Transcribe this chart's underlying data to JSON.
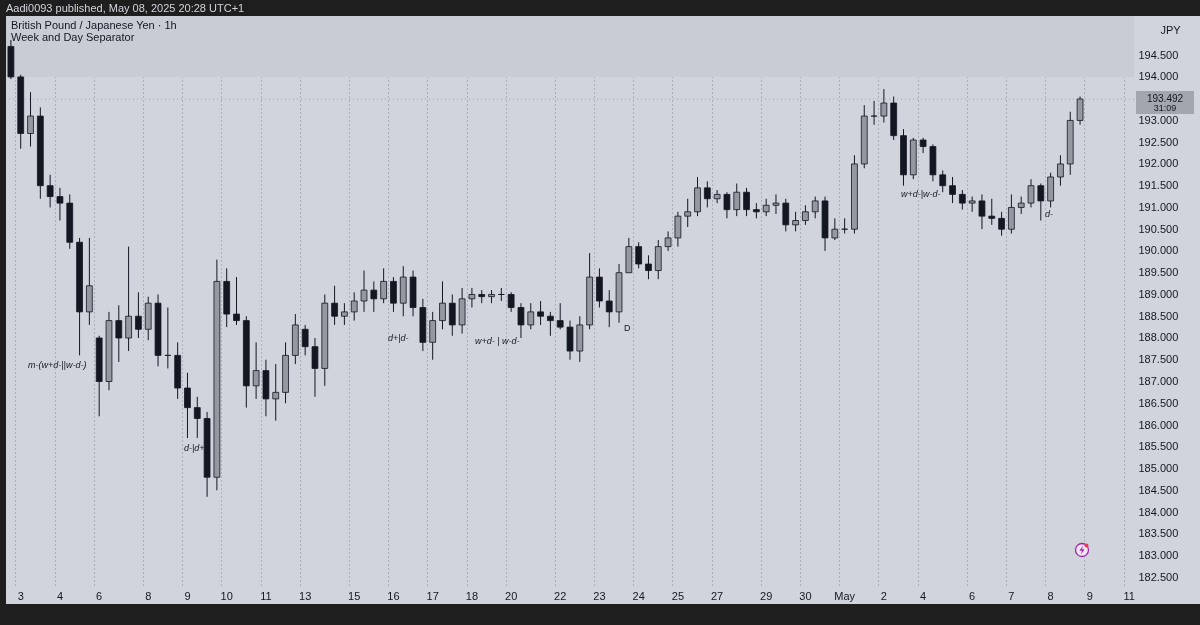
{
  "chart_data": {
    "type": "candlestick",
    "title": "British Pound / Japanese Yen · 1h",
    "subtitle": "Week and Day Separator",
    "ylabel": "JPY",
    "categories": [
      null,
      "3",
      null,
      null,
      null,
      "4",
      null,
      null,
      null,
      "6",
      null,
      null,
      null,
      null,
      "8",
      null,
      null,
      null,
      "9",
      null,
      null,
      null,
      "10",
      null,
      null,
      null,
      "11",
      null,
      null,
      null,
      "13",
      null,
      null,
      null,
      null,
      "15",
      null,
      null,
      null,
      "16",
      null,
      null,
      null,
      "17",
      null,
      null,
      null,
      "18",
      null,
      null,
      null,
      "20",
      null,
      null,
      null,
      null,
      "22",
      null,
      null,
      null,
      "23",
      null,
      null,
      null,
      "24",
      null,
      null,
      null,
      "25",
      null,
      null,
      null,
      "27",
      null,
      null,
      null,
      null,
      "29",
      null,
      null,
      null,
      "30",
      null,
      null,
      null,
      "May",
      null,
      null,
      null,
      "2",
      null,
      null,
      null,
      "4",
      null,
      null,
      null,
      null,
      "6",
      null,
      null,
      null,
      "7",
      null,
      null,
      null,
      "8",
      null,
      null,
      null,
      "9",
      null,
      null,
      null,
      "11"
    ],
    "ohlc": [
      [
        194.7,
        194.85,
        193.95,
        194.0
      ],
      [
        194.0,
        194.05,
        192.35,
        192.7
      ],
      [
        192.7,
        193.65,
        192.4,
        193.1
      ],
      [
        193.1,
        193.3,
        191.2,
        191.5
      ],
      [
        191.5,
        191.75,
        191.0,
        191.25
      ],
      [
        191.25,
        191.45,
        190.7,
        191.1
      ],
      [
        191.1,
        191.3,
        190.05,
        190.2
      ],
      [
        190.2,
        190.3,
        187.6,
        188.6
      ],
      [
        188.6,
        190.3,
        188.3,
        189.2
      ],
      [
        188.0,
        188.05,
        186.2,
        187.0
      ],
      [
        187.0,
        188.6,
        186.8,
        188.4
      ],
      [
        188.4,
        188.75,
        187.45,
        188.0
      ],
      [
        188.0,
        190.1,
        187.7,
        188.5
      ],
      [
        188.5,
        189.05,
        188.0,
        188.2
      ],
      [
        188.2,
        188.95,
        187.95,
        188.8
      ],
      [
        188.8,
        189.0,
        187.35,
        187.6
      ],
      [
        187.6,
        188.7,
        187.3,
        187.6
      ],
      [
        187.6,
        187.9,
        186.6,
        186.85
      ],
      [
        186.85,
        187.2,
        185.7,
        186.4
      ],
      [
        186.4,
        186.65,
        185.7,
        186.15
      ],
      [
        186.15,
        186.3,
        184.35,
        184.8
      ],
      [
        184.8,
        189.8,
        184.5,
        189.3
      ],
      [
        189.3,
        189.6,
        188.25,
        188.55
      ],
      [
        188.55,
        189.4,
        188.3,
        188.4
      ],
      [
        188.4,
        188.5,
        186.4,
        186.9
      ],
      [
        186.9,
        187.9,
        186.6,
        187.25
      ],
      [
        187.25,
        187.5,
        186.2,
        186.6
      ],
      [
        186.6,
        187.4,
        186.1,
        186.75
      ],
      [
        186.75,
        187.9,
        186.5,
        187.6
      ],
      [
        187.6,
        188.55,
        187.4,
        188.3
      ],
      [
        188.2,
        188.3,
        187.6,
        187.8
      ],
      [
        187.8,
        188.0,
        186.65,
        187.3
      ],
      [
        187.3,
        189.0,
        186.9,
        188.8
      ],
      [
        188.8,
        189.2,
        188.3,
        188.5
      ],
      [
        188.5,
        188.8,
        188.3,
        188.6
      ],
      [
        188.6,
        189.05,
        188.4,
        188.85
      ],
      [
        188.85,
        189.55,
        188.6,
        189.1
      ],
      [
        189.1,
        189.3,
        188.6,
        188.9
      ],
      [
        188.9,
        189.6,
        188.8,
        189.3
      ],
      [
        189.3,
        189.4,
        188.6,
        188.8
      ],
      [
        188.8,
        189.65,
        188.5,
        189.4
      ],
      [
        189.4,
        189.55,
        188.5,
        188.7
      ],
      [
        188.7,
        188.9,
        187.7,
        187.9
      ],
      [
        187.9,
        188.6,
        187.5,
        188.4
      ],
      [
        188.4,
        189.3,
        188.2,
        188.8
      ],
      [
        188.8,
        189.0,
        188.05,
        188.3
      ],
      [
        188.3,
        189.15,
        188.1,
        188.9
      ],
      [
        188.9,
        189.15,
        188.7,
        189.0
      ],
      [
        189.0,
        189.1,
        188.8,
        188.95
      ],
      [
        188.95,
        189.1,
        188.8,
        189.0
      ],
      [
        189.0,
        189.15,
        188.85,
        189.0
      ],
      [
        189.0,
        189.05,
        188.6,
        188.7
      ],
      [
        188.7,
        188.8,
        188.0,
        188.3
      ],
      [
        188.3,
        188.8,
        188.2,
        188.6
      ],
      [
        188.6,
        188.85,
        188.3,
        188.5
      ],
      [
        188.5,
        188.6,
        188.05,
        188.4
      ],
      [
        188.4,
        188.8,
        188.2,
        188.25
      ],
      [
        188.25,
        188.4,
        187.5,
        187.7
      ],
      [
        187.7,
        188.5,
        187.45,
        188.3
      ],
      [
        188.3,
        189.95,
        188.2,
        189.4
      ],
      [
        189.4,
        189.6,
        188.7,
        188.85
      ],
      [
        188.85,
        189.1,
        188.25,
        188.6
      ],
      [
        188.6,
        189.7,
        188.35,
        189.5
      ],
      [
        189.5,
        190.3,
        189.5,
        190.1
      ],
      [
        190.1,
        190.2,
        189.6,
        189.7
      ],
      [
        189.7,
        189.9,
        189.35,
        189.55
      ],
      [
        189.55,
        190.25,
        189.35,
        190.1
      ],
      [
        190.1,
        190.45,
        190.0,
        190.3
      ],
      [
        190.3,
        190.9,
        190.1,
        190.8
      ],
      [
        190.8,
        191.2,
        190.55,
        190.9
      ],
      [
        190.9,
        191.7,
        190.8,
        191.45
      ],
      [
        191.45,
        191.6,
        191.0,
        191.2
      ],
      [
        191.2,
        191.4,
        191.1,
        191.3
      ],
      [
        191.3,
        191.35,
        190.75,
        190.95
      ],
      [
        190.95,
        191.55,
        190.8,
        191.35
      ],
      [
        191.35,
        191.45,
        190.8,
        190.95
      ],
      [
        190.95,
        191.1,
        190.75,
        190.9
      ],
      [
        190.9,
        191.2,
        190.8,
        191.05
      ],
      [
        191.05,
        191.3,
        190.85,
        191.1
      ],
      [
        191.1,
        191.2,
        190.45,
        190.6
      ],
      [
        190.6,
        190.9,
        190.45,
        190.7
      ],
      [
        190.7,
        191.05,
        190.6,
        190.9
      ],
      [
        190.9,
        191.25,
        190.75,
        191.15
      ],
      [
        191.15,
        191.25,
        190.0,
        190.3
      ],
      [
        190.3,
        190.75,
        190.25,
        190.5
      ],
      [
        190.5,
        190.75,
        190.4,
        190.5
      ],
      [
        190.5,
        192.2,
        190.4,
        192.0
      ],
      [
        192.0,
        193.35,
        191.9,
        193.1
      ],
      [
        193.1,
        193.45,
        192.9,
        193.1
      ],
      [
        193.1,
        193.72,
        192.95,
        193.4
      ],
      [
        193.4,
        193.55,
        192.55,
        192.65
      ],
      [
        192.65,
        192.8,
        191.5,
        191.75
      ],
      [
        191.75,
        192.6,
        191.65,
        192.55
      ],
      [
        192.55,
        192.6,
        192.25,
        192.4
      ],
      [
        192.4,
        192.45,
        191.6,
        191.75
      ],
      [
        191.75,
        191.85,
        191.35,
        191.5
      ],
      [
        191.5,
        191.7,
        191.1,
        191.3
      ],
      [
        191.3,
        191.4,
        190.95,
        191.1
      ],
      [
        191.1,
        191.25,
        190.9,
        191.15
      ],
      [
        191.15,
        191.3,
        190.5,
        190.8
      ],
      [
        190.8,
        191.2,
        190.6,
        190.75
      ],
      [
        190.75,
        190.9,
        190.35,
        190.5
      ],
      [
        190.5,
        191.3,
        190.4,
        191.0
      ],
      [
        191.0,
        191.25,
        190.85,
        191.1
      ],
      [
        191.1,
        191.65,
        191.0,
        191.5
      ],
      [
        191.5,
        191.55,
        190.7,
        191.15
      ],
      [
        191.15,
        191.8,
        191.0,
        191.7
      ],
      [
        191.7,
        192.2,
        191.5,
        192.0
      ],
      [
        192.0,
        193.2,
        191.75,
        193.0
      ],
      [
        193.0,
        193.55,
        192.9,
        193.492
      ],
      null,
      null,
      null,
      null,
      null
    ],
    "ylim": [
      182.3,
      195.4
    ],
    "yticks": [
      {
        "value": 182.5,
        "label": "182.500"
      },
      {
        "value": 183,
        "label": "183.000"
      },
      {
        "value": 183.5,
        "label": "183.500"
      },
      {
        "value": 184,
        "label": "184.000"
      },
      {
        "value": 184.5,
        "label": "184.500"
      },
      {
        "value": 185,
        "label": "185.000"
      },
      {
        "value": 185.5,
        "label": "185.500"
      },
      {
        "value": 186,
        "label": "186.000"
      },
      {
        "value": 186.5,
        "label": "186.500"
      },
      {
        "value": 187,
        "label": "187.000"
      },
      {
        "value": 187.5,
        "label": "187.500"
      },
      {
        "value": 188,
        "label": "188.000"
      },
      {
        "value": 188.5,
        "label": "188.500"
      },
      {
        "value": 189,
        "label": "189.000"
      },
      {
        "value": 189.5,
        "label": "189.500"
      },
      {
        "value": 190,
        "label": "190.000"
      },
      {
        "value": 190.5,
        "label": "190.500"
      },
      {
        "value": 191,
        "label": "191.000"
      },
      {
        "value": 191.5,
        "label": "191.500"
      },
      {
        "value": 192,
        "label": "192.000"
      },
      {
        "value": 192.5,
        "label": "192.500"
      },
      {
        "value": 193,
        "label": "193.000"
      },
      {
        "value": 194,
        "label": "194.000"
      },
      {
        "value": 194.5,
        "label": "194.500"
      }
    ],
    "grid": "x",
    "bands": [
      {
        "axis": "y",
        "from": 194.0,
        "to": 195.4,
        "color": "#c9ccd4"
      }
    ],
    "ref_lines": [
      {
        "axis": "y",
        "value": 193.492,
        "label": "193.492",
        "color": "#a3a6af",
        "line_style": "dotted"
      }
    ],
    "annotations": [
      "Aadi0093 published, May 08, 2025 20:28 UTC+1",
      "m-(w+d-||w-d-)",
      "d-|d+",
      "d+|d-",
      "w+d- | w-d-",
      "D",
      "w+d-|w-d-",
      "d-",
      "31:09"
    ]
  }
}
